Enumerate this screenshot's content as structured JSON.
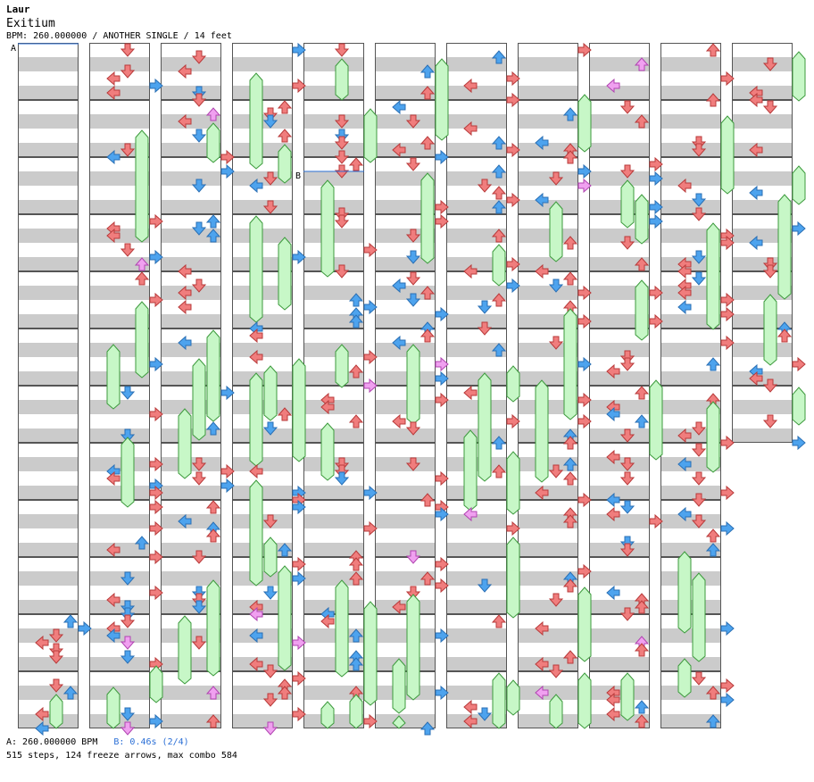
{
  "header": {
    "artist": "Laur",
    "song": "Exitium",
    "meta": "BPM: 260.000000 / ANOTHER SINGLE / 14 feet"
  },
  "markers": {
    "a": "A",
    "b": "B"
  },
  "footer": {
    "bpm_a": "A: 260.000000 BPM",
    "stop_b": "B: 0.46s (2/4)",
    "stats": "515 steps, 124 freeze arrows, max combo 584"
  },
  "colors": {
    "quarter": "#f07d7d",
    "eighth": "#4da3ee",
    "sixteenth": "#f0a0f0",
    "freeze": "#c7f7c7",
    "stripe": "#cbcbcb"
  },
  "chart_data": {
    "type": "table",
    "title": "Exitium",
    "columns": 11,
    "measures_per_column": 12,
    "lanes": [
      "left",
      "down",
      "up",
      "right"
    ],
    "bpm": 260,
    "stop_seconds": 0.46,
    "steps": 515,
    "freeze_arrows": 124,
    "max_combo": 584
  }
}
